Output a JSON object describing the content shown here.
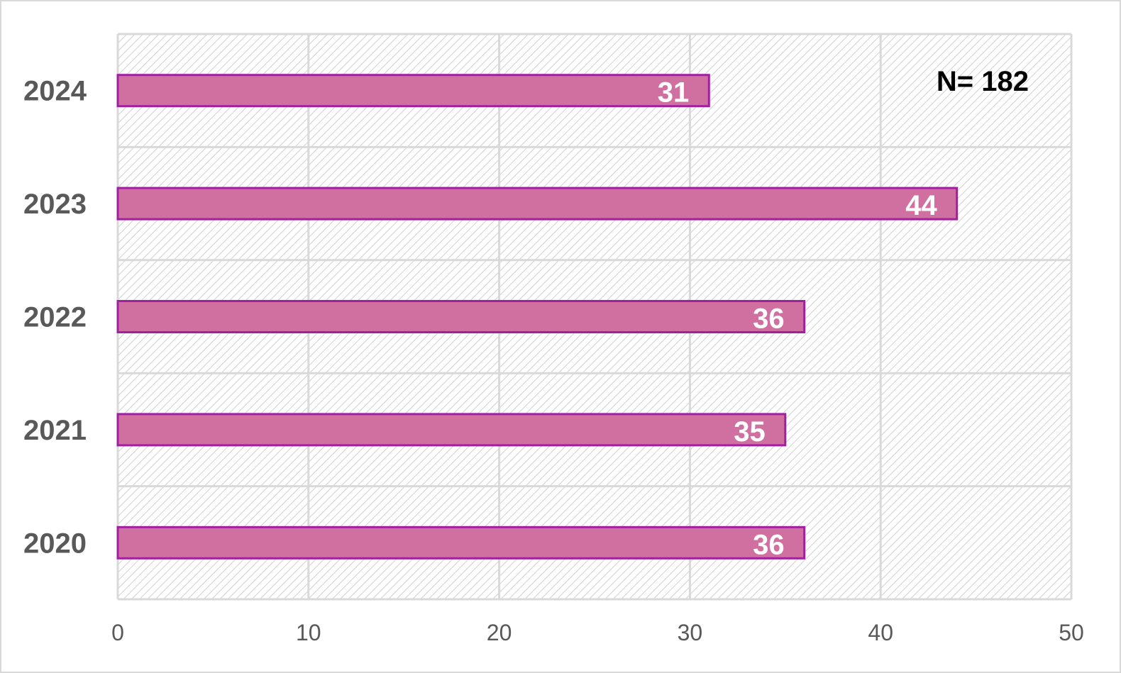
{
  "chart_data": {
    "type": "bar",
    "orientation": "horizontal",
    "categories": [
      "2020",
      "2021",
      "2022",
      "2023",
      "2024"
    ],
    "values": [
      36,
      35,
      36,
      44,
      31
    ],
    "xlim": [
      0,
      50
    ],
    "xticks": [
      "0",
      "10",
      "20",
      "30",
      "40",
      "50"
    ],
    "annotation": "N= 182",
    "grid": true,
    "data_labels": true,
    "colors": {
      "bar_fill": "#d070a0",
      "bar_border": "#a020a0",
      "grid": "#d9d9d9",
      "hatch": "#d0d0d0",
      "text": "#595959"
    }
  }
}
